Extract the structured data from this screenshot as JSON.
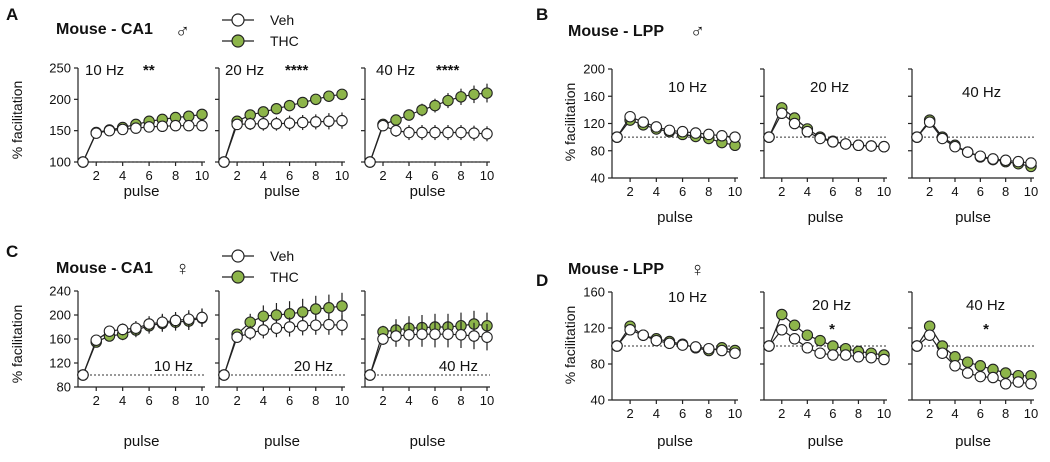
{
  "colors": {
    "veh": "#ffffff",
    "thc": "#8db54a",
    "axis": "#222222",
    "marker_edge": "#222222"
  },
  "legend": {
    "veh": "Veh",
    "thc": "THC"
  },
  "chart_data": [
    {
      "panel_letter": "A",
      "title": "Mouse - CA1",
      "sex_symbol": "♂",
      "type": "line",
      "ylabel": "% facilitation",
      "xlabel": "pulse",
      "ylim": [
        100,
        250
      ],
      "yticks": [
        "100",
        "150",
        "200",
        "250"
      ],
      "x": [
        1,
        2,
        3,
        4,
        5,
        6,
        7,
        8,
        9,
        10
      ],
      "xticks": [
        "2",
        "4",
        "6",
        "8",
        "10"
      ],
      "baseline": 100,
      "has_legend": true,
      "label_pos": "top",
      "subplots": [
        {
          "label": "10 Hz",
          "sig": "**",
          "series": [
            {
              "name": "Veh",
              "values": [
                100,
                146,
                150,
                152,
                154,
                156,
                157,
                158,
                158,
                158
              ],
              "err": [
                0,
                4,
                4,
                4,
                4,
                5,
                5,
                5,
                6,
                6
              ]
            },
            {
              "name": "THC",
              "values": [
                100,
                147,
                151,
                155,
                160,
                165,
                168,
                171,
                173,
                176
              ],
              "err": [
                0,
                4,
                4,
                5,
                5,
                5,
                6,
                6,
                7,
                7
              ]
            }
          ]
        },
        {
          "label": "20 Hz",
          "sig": "****",
          "series": [
            {
              "name": "Veh",
              "values": [
                100,
                160,
                161,
                161,
                161,
                162,
                163,
                164,
                165,
                166
              ],
              "err": [
                0,
                8,
                10,
                11,
                11,
                12,
                12,
                12,
                13,
                13
              ]
            },
            {
              "name": "THC",
              "values": [
                100,
                165,
                175,
                180,
                185,
                190,
                195,
                200,
                205,
                208
              ],
              "err": [
                0,
                6,
                7,
                8,
                8,
                8,
                8,
                8,
                8,
                8
              ]
            }
          ]
        },
        {
          "label": "40 Hz",
          "sig": "****",
          "series": [
            {
              "name": "Veh",
              "values": [
                100,
                158,
                150,
                147,
                147,
                147,
                147,
                147,
                146,
                145
              ],
              "err": [
                0,
                6,
                10,
                12,
                12,
                12,
                12,
                12,
                12,
                12
              ]
            },
            {
              "name": "THC",
              "values": [
                100,
                160,
                167,
                175,
                183,
                190,
                198,
                204,
                208,
                210
              ],
              "err": [
                0,
                5,
                7,
                9,
                10,
                11,
                12,
                13,
                14,
                15
              ]
            }
          ]
        }
      ]
    },
    {
      "panel_letter": "B",
      "title": "Mouse - LPP",
      "sex_symbol": "♂",
      "type": "line",
      "ylabel": "% facilitation",
      "xlabel": "pulse",
      "ylim": [
        40,
        200
      ],
      "yticks": [
        "40",
        "80",
        "120",
        "160",
        "200"
      ],
      "x": [
        1,
        2,
        3,
        4,
        5,
        6,
        7,
        8,
        9,
        10
      ],
      "xticks": [
        "2",
        "4",
        "6",
        "8",
        "10"
      ],
      "baseline": 100,
      "has_legend": false,
      "label_pos": "top",
      "subplots": [
        {
          "label": "10 Hz",
          "sig": "",
          "series": [
            {
              "name": "Veh",
              "values": [
                100,
                130,
                122,
                115,
                110,
                108,
                106,
                104,
                102,
                100
              ],
              "err": [
                0,
                4,
                4,
                3,
                3,
                3,
                3,
                3,
                3,
                3
              ]
            },
            {
              "name": "THC",
              "values": [
                100,
                125,
                118,
                112,
                108,
                104,
                101,
                98,
                92,
                88
              ],
              "err": [
                0,
                4,
                4,
                3,
                3,
                3,
                3,
                3,
                3,
                3
              ]
            }
          ]
        },
        {
          "label": "20 Hz",
          "sig": "",
          "series": [
            {
              "name": "Veh",
              "values": [
                100,
                135,
                120,
                108,
                98,
                93,
                90,
                88,
                87,
                86
              ],
              "err": [
                0,
                5,
                4,
                3,
                3,
                3,
                3,
                3,
                3,
                3
              ]
            },
            {
              "name": "THC",
              "values": [
                100,
                143,
                128,
                112,
                100,
                94,
                90,
                88,
                87,
                86
              ],
              "err": [
                0,
                5,
                4,
                3,
                3,
                3,
                3,
                3,
                3,
                3
              ]
            }
          ]
        },
        {
          "label": "40 Hz",
          "sig": "",
          "series": [
            {
              "name": "Veh",
              "values": [
                100,
                122,
                98,
                86,
                78,
                72,
                68,
                66,
                64,
                62
              ],
              "err": [
                0,
                5,
                4,
                3,
                3,
                3,
                3,
                3,
                3,
                3
              ]
            },
            {
              "name": "THC",
              "values": [
                100,
                125,
                100,
                88,
                78,
                71,
                67,
                64,
                61,
                57
              ],
              "err": [
                0,
                5,
                4,
                3,
                3,
                3,
                3,
                3,
                3,
                3
              ]
            }
          ]
        }
      ]
    },
    {
      "panel_letter": "C",
      "title": "Mouse - CA1",
      "sex_symbol": "♀",
      "type": "line",
      "ylabel": "% facilitation",
      "xlabel": "pulse",
      "ylim": [
        80,
        240
      ],
      "yticks": [
        "80",
        "120",
        "160",
        "200",
        "240"
      ],
      "x": [
        1,
        2,
        3,
        4,
        5,
        6,
        7,
        8,
        9,
        10
      ],
      "xticks": [
        "2",
        "4",
        "6",
        "8",
        "10"
      ],
      "baseline": 100,
      "has_legend": true,
      "label_pos": "bottom",
      "subplots": [
        {
          "label": "10 Hz",
          "sig": "",
          "series": [
            {
              "name": "Veh",
              "values": [
                100,
                158,
                173,
                176,
                178,
                185,
                188,
                191,
                193,
                196
              ],
              "err": [
                0,
                5,
                8,
                10,
                12,
                13,
                14,
                14,
                15,
                15
              ]
            },
            {
              "name": "THC",
              "values": [
                100,
                155,
                165,
                168,
                175,
                182,
                186,
                188,
                190,
                195
              ],
              "err": [
                0,
                5,
                8,
                10,
                12,
                13,
                14,
                14,
                15,
                15
              ]
            }
          ]
        },
        {
          "label": "20 Hz",
          "sig": "",
          "series": [
            {
              "name": "Veh",
              "values": [
                100,
                163,
                170,
                175,
                178,
                180,
                182,
                183,
                184,
                183
              ],
              "err": [
                0,
                6,
                12,
                14,
                15,
                16,
                16,
                16,
                17,
                17
              ]
            },
            {
              "name": "THC",
              "values": [
                100,
                168,
                188,
                198,
                200,
                202,
                205,
                210,
                212,
                215
              ],
              "err": [
                0,
                6,
                14,
                18,
                20,
                21,
                22,
                22,
                22,
                22
              ]
            }
          ]
        },
        {
          "label": "40 Hz",
          "sig": "",
          "series": [
            {
              "name": "Veh",
              "values": [
                100,
                160,
                165,
                167,
                168,
                168,
                168,
                167,
                165,
                163
              ],
              "err": [
                0,
                10,
                18,
                20,
                21,
                22,
                22,
                22,
                22,
                22
              ]
            },
            {
              "name": "THC",
              "values": [
                100,
                172,
                175,
                178,
                179,
                180,
                180,
                182,
                185,
                182
              ],
              "err": [
                0,
                10,
                18,
                20,
                21,
                22,
                22,
                22,
                22,
                22
              ]
            }
          ]
        }
      ]
    },
    {
      "panel_letter": "D",
      "title": "Mouse - LPP",
      "sex_symbol": "♀",
      "type": "line",
      "ylabel": "% facilitation",
      "xlabel": "pulse",
      "ylim": [
        40,
        160
      ],
      "yticks": [
        "40",
        "80",
        "120",
        "160"
      ],
      "x": [
        1,
        2,
        3,
        4,
        5,
        6,
        7,
        8,
        9,
        10
      ],
      "xticks": [
        "2",
        "4",
        "6",
        "8",
        "10"
      ],
      "baseline": 100,
      "has_legend": false,
      "label_pos": "top",
      "subplots": [
        {
          "label": "10 Hz",
          "sig": "",
          "series": [
            {
              "name": "Veh",
              "values": [
                100,
                118,
                112,
                106,
                103,
                101,
                99,
                97,
                95,
                92
              ],
              "err": [
                0,
                5,
                4,
                4,
                4,
                4,
                4,
                4,
                4,
                4
              ]
            },
            {
              "name": "THC",
              "values": [
                100,
                122,
                112,
                108,
                105,
                102,
                98,
                95,
                98,
                95
              ],
              "err": [
                0,
                5,
                4,
                4,
                4,
                4,
                4,
                4,
                4,
                4
              ]
            }
          ]
        },
        {
          "label": "20 Hz",
          "sig": "*",
          "series": [
            {
              "name": "Veh",
              "values": [
                100,
                118,
                108,
                98,
                92,
                90,
                90,
                88,
                87,
                85
              ],
              "err": [
                0,
                6,
                5,
                4,
                4,
                4,
                4,
                4,
                4,
                4
              ]
            },
            {
              "name": "THC",
              "values": [
                100,
                135,
                123,
                112,
                106,
                100,
                97,
                94,
                92,
                90
              ],
              "err": [
                0,
                6,
                5,
                5,
                4,
                4,
                4,
                4,
                4,
                4
              ]
            }
          ]
        },
        {
          "label": "40 Hz",
          "sig": "*",
          "series": [
            {
              "name": "Veh",
              "values": [
                100,
                112,
                92,
                78,
                70,
                66,
                65,
                58,
                60,
                58
              ],
              "err": [
                0,
                5,
                5,
                4,
                4,
                4,
                4,
                4,
                4,
                4
              ]
            },
            {
              "name": "THC",
              "values": [
                100,
                122,
                100,
                88,
                82,
                78,
                74,
                70,
                67,
                67
              ],
              "err": [
                0,
                5,
                5,
                4,
                4,
                4,
                4,
                4,
                4,
                4
              ]
            }
          ]
        }
      ]
    }
  ]
}
